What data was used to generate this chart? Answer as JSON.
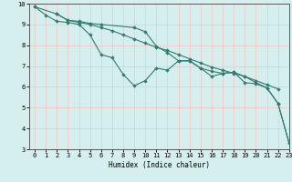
{
  "xlabel": "Humidex (Indice chaleur)",
  "xlim": [
    -0.5,
    23
  ],
  "ylim": [
    3,
    10
  ],
  "xticks": [
    0,
    1,
    2,
    3,
    4,
    5,
    6,
    7,
    8,
    9,
    10,
    11,
    12,
    13,
    14,
    15,
    16,
    17,
    18,
    19,
    20,
    21,
    22,
    23
  ],
  "yticks": [
    3,
    4,
    5,
    6,
    7,
    8,
    9,
    10
  ],
  "bg_color": "#d5eeee",
  "grid_color": "#f5c8c8",
  "line_color": "#2e7d6e",
  "series": [
    {
      "x": [
        0,
        1,
        2,
        3,
        4,
        5,
        6,
        7,
        8,
        9,
        10,
        11,
        12,
        13,
        14,
        15,
        16,
        17,
        18,
        19,
        20,
        21,
        22,
        23
      ],
      "y": [
        9.85,
        9.45,
        9.15,
        9.1,
        9.0,
        8.5,
        7.55,
        7.4,
        6.6,
        6.05,
        6.3,
        6.9,
        6.8,
        7.25,
        7.25,
        6.9,
        6.5,
        6.65,
        6.7,
        6.2,
        6.15,
        5.95,
        5.2,
        3.3
      ]
    },
    {
      "x": [
        0,
        2,
        3,
        4,
        5,
        6,
        7,
        8,
        9,
        10,
        11,
        12,
        13,
        14,
        15,
        16,
        17,
        18,
        19,
        20,
        21,
        22
      ],
      "y": [
        9.85,
        9.5,
        9.2,
        9.1,
        9.0,
        8.85,
        8.7,
        8.5,
        8.3,
        8.1,
        7.9,
        7.75,
        7.55,
        7.35,
        7.15,
        6.95,
        6.8,
        6.65,
        6.5,
        6.3,
        6.1,
        5.9
      ]
    },
    {
      "x": [
        2,
        3,
        4,
        5,
        6,
        9,
        10,
        11,
        12,
        13,
        14,
        15,
        16,
        17,
        18,
        19,
        20,
        21,
        22,
        23
      ],
      "y": [
        9.5,
        9.2,
        9.15,
        9.05,
        9.0,
        8.85,
        8.65,
        7.95,
        7.65,
        7.25,
        7.25,
        6.9,
        6.75,
        6.65,
        6.7,
        6.5,
        6.2,
        5.95,
        5.2,
        3.3
      ]
    }
  ]
}
